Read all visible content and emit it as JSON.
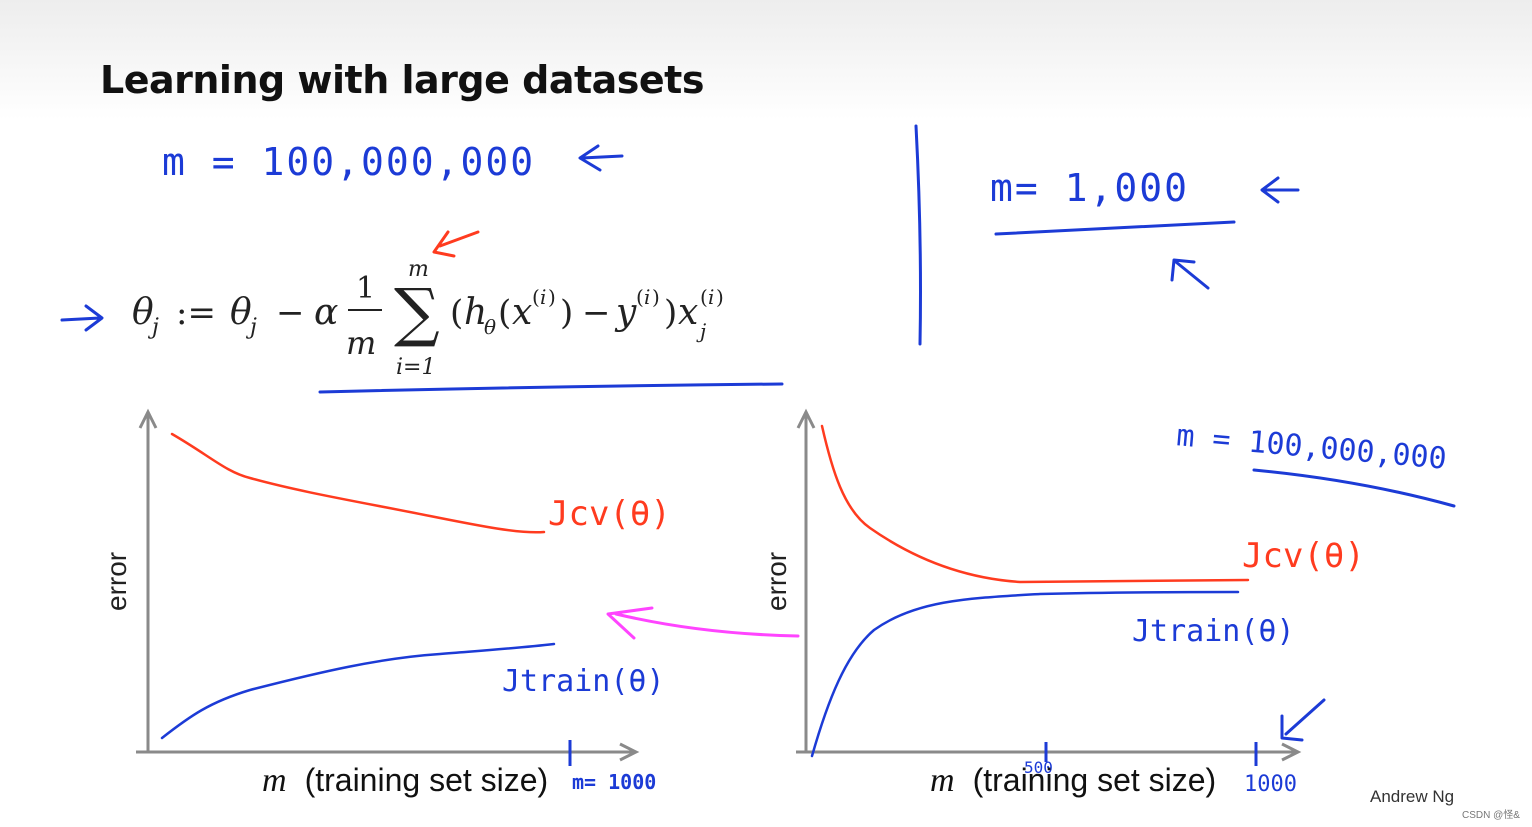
{
  "slide": {
    "title": "Learning with large datasets",
    "credit": "Andrew Ng",
    "watermark": "CSDN @怪&"
  },
  "annotations": {
    "m_large_top": "m = 100,000,000",
    "m_small": "m= 1,000",
    "m_large_right": "m = 100,000,000",
    "m_1000_left": "m= 1000",
    "tick_500": "500",
    "tick_1000": "1000"
  },
  "formula": {
    "lhs": "θj",
    "assign": ":=",
    "rhs": "θj − α (1/m) Σ_{i=1}^{m} (hθ(x(i)) − y(i)) xj(i)"
  },
  "charts": {
    "left": {
      "ylabel": "error",
      "xlabel_var": "m",
      "xlabel_text": "(training set size)",
      "cv_label": "Jcv(θ)",
      "train_label": "Jtrain(θ)"
    },
    "right": {
      "ylabel": "error",
      "xlabel_var": "m",
      "xlabel_text": "(training set size)",
      "cv_label": "Jcv(θ)",
      "train_label": "Jtrain(θ)"
    }
  },
  "colors": {
    "ink_blue": "#1c3bd6",
    "ink_red": "#ff3b1f",
    "ink_pink": "#ff44ff",
    "axis_gray": "#8a8a8a"
  }
}
